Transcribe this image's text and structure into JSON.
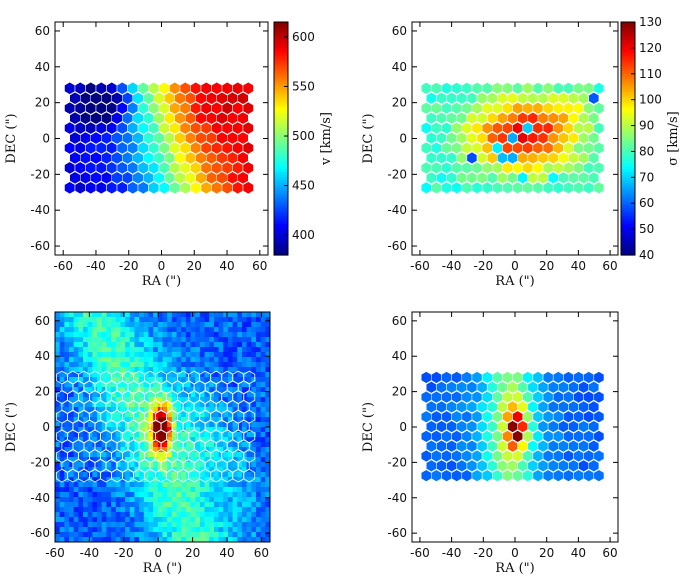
{
  "figure": {
    "xlabel": "RA (\")",
    "ylabel": "DEC (\")"
  },
  "chart_data": [
    {
      "type": "heatmap",
      "panel": "top-left",
      "quantity": "velocity",
      "xlabel": "RA (\")",
      "ylabel": "DEC (\")",
      "xlim": [
        -65,
        65
      ],
      "ylim": [
        -65,
        65
      ],
      "xticks": [
        -60,
        -40,
        -20,
        0,
        20,
        40,
        60
      ],
      "yticks": [
        -60,
        -40,
        -20,
        0,
        20,
        40,
        60
      ],
      "field_x": [
        -56,
        54
      ],
      "field_y": [
        -28,
        28
      ],
      "colorbar": {
        "label": "v [km/s]",
        "range": [
          380,
          615
        ],
        "ticks": [
          400,
          450,
          500,
          550,
          600
        ],
        "cmap": "jet"
      },
      "description_values": {
        "min_region": {
          "ra": -38,
          "dec": 22,
          "value": 385
        },
        "max_region": {
          "ra": 40,
          "dec": -22,
          "value": 610
        }
      }
    },
    {
      "type": "heatmap",
      "panel": "top-right",
      "quantity": "dispersion",
      "xlabel": "RA (\")",
      "ylabel": "DEC (\")",
      "xlim": [
        -65,
        65
      ],
      "ylim": [
        -65,
        65
      ],
      "xticks": [
        -60,
        -40,
        -20,
        0,
        20,
        40,
        60
      ],
      "yticks": [
        -60,
        -40,
        -20,
        0,
        20,
        40,
        60
      ],
      "field_x": [
        -56,
        54
      ],
      "field_y": [
        -28,
        28
      ],
      "colorbar": {
        "label": "σ [km/s]",
        "range": [
          40,
          130
        ],
        "ticks": [
          40,
          50,
          60,
          70,
          80,
          90,
          100,
          110,
          120,
          130
        ],
        "cmap": "jet"
      },
      "description_values": {
        "center": {
          "ra": 5,
          "dec": 2,
          "value": 122
        },
        "edge": {
          "ra": -55,
          "dec": -25,
          "value": 70
        }
      }
    },
    {
      "type": "heatmap",
      "panel": "bottom-left",
      "quantity": "image with hexagonal grid overlay",
      "xlabel": "RA (\")",
      "ylabel": "DEC (\")",
      "xlim": [
        -60,
        65
      ],
      "ylim": [
        -65,
        65
      ],
      "xticks": [
        -60,
        -40,
        -20,
        0,
        20,
        40,
        60
      ],
      "yticks": [
        -60,
        -40,
        -20,
        0,
        20,
        40,
        60
      ],
      "field_x": [
        -56,
        54
      ],
      "field_y": [
        -28,
        28
      ],
      "peak": {
        "ra": 2,
        "dec": 0
      }
    },
    {
      "type": "heatmap",
      "panel": "bottom-right",
      "quantity": "flux",
      "xlabel": "RA (\")",
      "ylabel": "DEC (\")",
      "xlim": [
        -65,
        65
      ],
      "ylim": [
        -65,
        65
      ],
      "xticks": [
        -60,
        -40,
        -20,
        0,
        20,
        40,
        60
      ],
      "yticks": [
        -60,
        -40,
        -20,
        0,
        20,
        40,
        60
      ],
      "field_x": [
        -56,
        54
      ],
      "field_y": [
        -28,
        28
      ],
      "peak": {
        "ra": 0,
        "dec": 0
      }
    }
  ]
}
